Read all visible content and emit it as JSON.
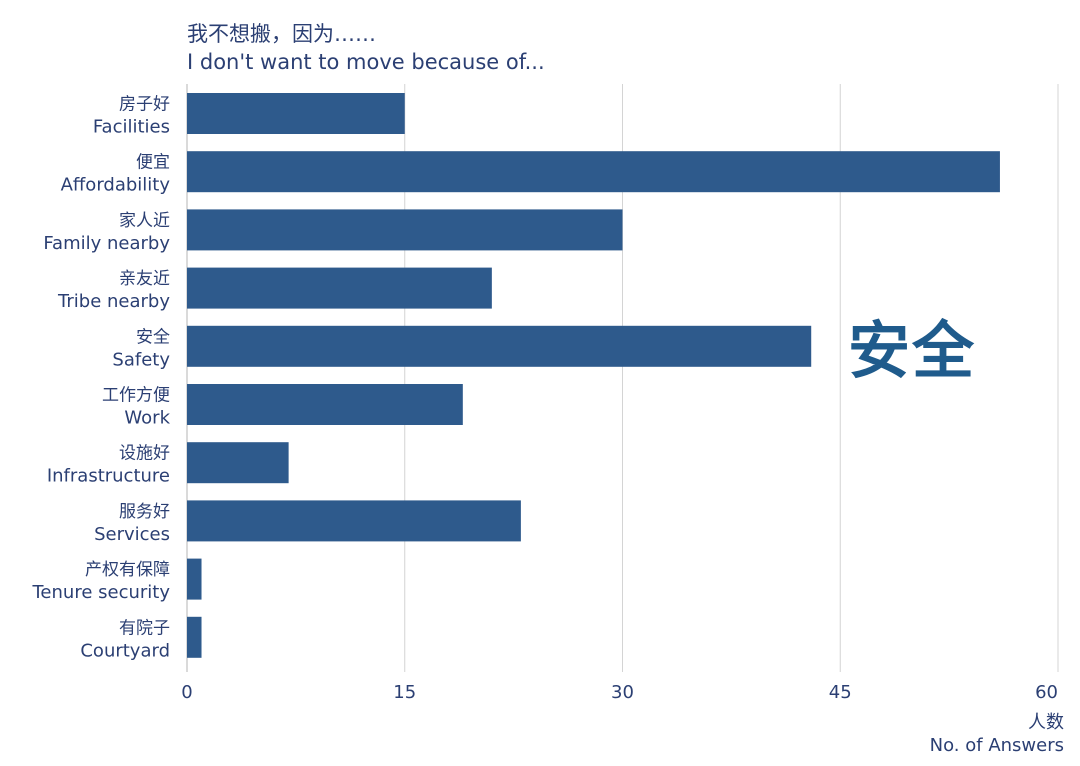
{
  "title_zh": "我不想搬，因为……",
  "title_en": "I don't want to move because of...",
  "annotation": "安全",
  "colors": {
    "bar": "#2e5a8c",
    "text": "#2b3f73",
    "grid": "#d4d4d4",
    "annotation": "#1f5b8c"
  },
  "chart_data": {
    "type": "bar",
    "orientation": "horizontal",
    "categories": [
      {
        "zh": "房子好",
        "en": "Facilities"
      },
      {
        "zh": "便宜",
        "en": "Affordability"
      },
      {
        "zh": "家人近",
        "en": "Family nearby"
      },
      {
        "zh": "亲友近",
        "en": "Tribe nearby"
      },
      {
        "zh": "安全",
        "en": "Safety"
      },
      {
        "zh": "工作方便",
        "en": "Work"
      },
      {
        "zh": "设施好",
        "en": "Infrastructure"
      },
      {
        "zh": "服务好",
        "en": "Services"
      },
      {
        "zh": "产权有保障",
        "en": "Tenure security"
      },
      {
        "zh": "有院子",
        "en": "Courtyard"
      }
    ],
    "values": [
      15,
      56,
      30,
      21,
      43,
      19,
      7,
      23,
      1,
      1
    ],
    "xlabel_zh": "人数",
    "xlabel_en": "No. of Answers",
    "xlim": [
      0,
      60
    ],
    "xticks": [
      0,
      15,
      30,
      45,
      60
    ],
    "grid": "vertical"
  }
}
